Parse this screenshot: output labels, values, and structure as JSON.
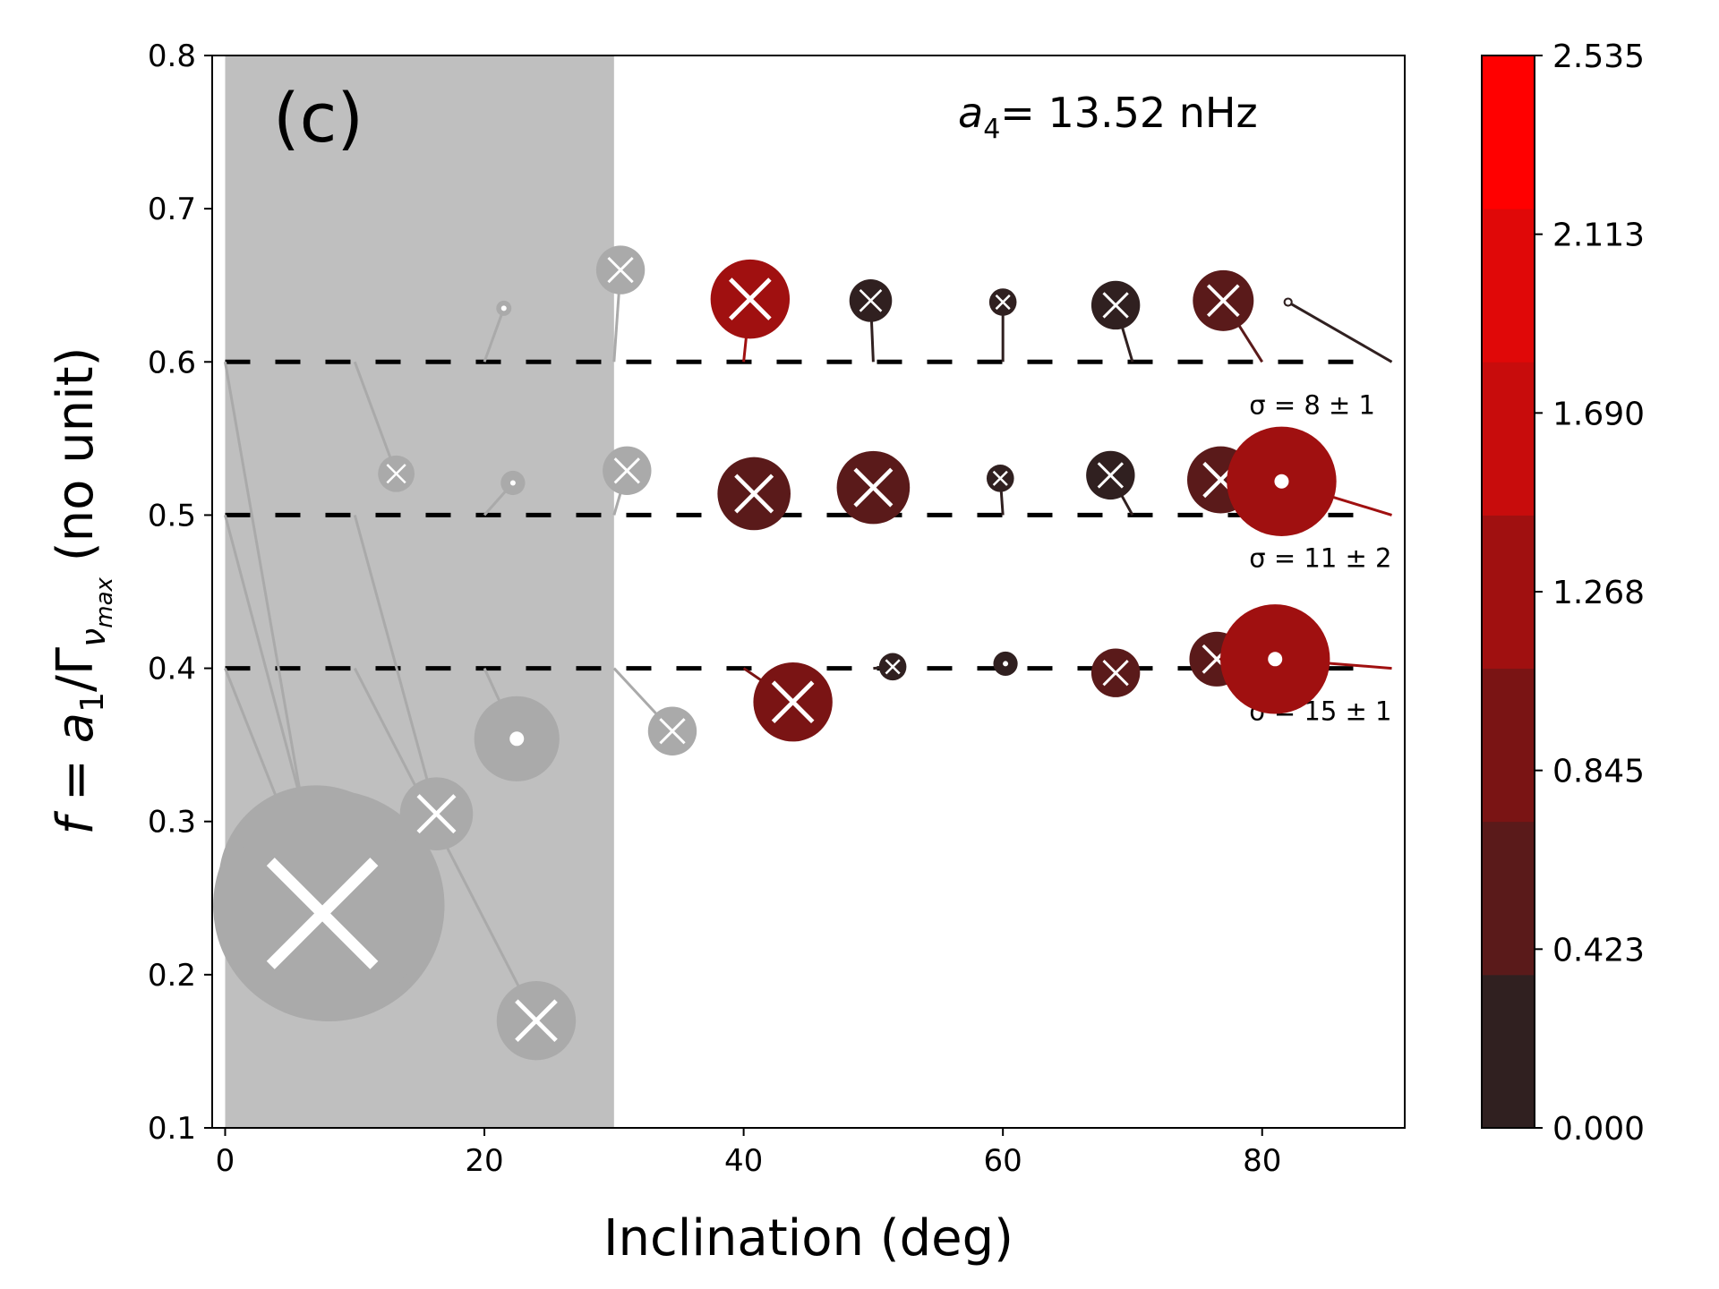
{
  "chart_data": {
    "type": "scatter",
    "panel_label": "(c)",
    "annotation_a4_symbol": "a",
    "annotation_a4_sub": "4",
    "annotation_a4_value": "= 13.52 nHz",
    "xlabel": "Inclination (deg)",
    "ylabel_parts": {
      "f": "f",
      "eq": " = ",
      "a": "a",
      "a_sub": "1",
      "slash": "/Γ",
      "nu": "ν",
      "nu_sub": "max",
      "unit": "  (no unit)"
    },
    "xlim": [
      -1,
      91
    ],
    "ylim": [
      0.1,
      0.8
    ],
    "xticks": [
      0,
      20,
      40,
      60,
      80
    ],
    "yticks": [
      0.1,
      0.2,
      0.3,
      0.4,
      0.5,
      0.6,
      0.7,
      0.8
    ],
    "ytick_labels": [
      "0.1",
      "0.2",
      "0.3",
      "0.4",
      "0.5",
      "0.6",
      "0.7",
      "0.8"
    ],
    "grid": false,
    "shaded_region": {
      "x": [
        0,
        30
      ],
      "color": "#bfbfbf"
    },
    "reference_lines": [
      {
        "y": 0.6,
        "sigma_label": "σ = 8 ± 1"
      },
      {
        "y": 0.5,
        "sigma_label": "σ = 11 ± 2"
      },
      {
        "y": 0.4,
        "sigma_label": "σ = 15 ± 1"
      }
    ],
    "colorbar": {
      "ticks": [
        "0.000",
        "0.423",
        "0.845",
        "1.268",
        "1.690",
        "2.113",
        "2.535"
      ],
      "colors": [
        "#302020",
        "#5a1a1a",
        "#7a1414",
        "#a01010",
        "#c80c0c",
        "#e00808",
        "#ff0000"
      ]
    },
    "points": [
      {
        "true_x": 0,
        "true_y": 0.6,
        "x": 7,
        "y": 0.26,
        "size": 3.2,
        "marker": "x",
        "color": "#aaaaaa"
      },
      {
        "true_x": 0,
        "true_y": 0.5,
        "x": 8,
        "y": 0.245,
        "size": 3.8,
        "marker": "x",
        "color": "#aaaaaa"
      },
      {
        "true_x": 0,
        "true_y": 0.4,
        "x": 7.5,
        "y": 0.24,
        "size": 3.4,
        "marker": "x",
        "color": "#aaaaaa"
      },
      {
        "true_x": 10,
        "true_y": 0.6,
        "x": 13.2,
        "y": 0.527,
        "size": 0.6,
        "marker": "x",
        "color": "#aaaaaa"
      },
      {
        "true_x": 10,
        "true_y": 0.5,
        "x": 16.3,
        "y": 0.305,
        "size": 1.2,
        "marker": "x",
        "color": "#aaaaaa"
      },
      {
        "true_x": 10,
        "true_y": 0.4,
        "x": 24,
        "y": 0.17,
        "size": 1.3,
        "marker": "x",
        "color": "#aaaaaa"
      },
      {
        "true_x": 20,
        "true_y": 0.6,
        "x": 21.5,
        "y": 0.635,
        "size": 0.25,
        "marker": "o",
        "color": "#aaaaaa"
      },
      {
        "true_x": 20,
        "true_y": 0.5,
        "x": 22.2,
        "y": 0.521,
        "size": 0.4,
        "marker": "o",
        "color": "#aaaaaa"
      },
      {
        "true_x": 20,
        "true_y": 0.4,
        "x": 22.5,
        "y": 0.354,
        "size": 1.4,
        "marker": "o",
        "color": "#aaaaaa"
      },
      {
        "true_x": 30,
        "true_y": 0.6,
        "x": 30.5,
        "y": 0.66,
        "size": 0.8,
        "marker": "x",
        "color": "#aaaaaa"
      },
      {
        "true_x": 30,
        "true_y": 0.5,
        "x": 31,
        "y": 0.529,
        "size": 0.8,
        "marker": "x",
        "color": "#aaaaaa"
      },
      {
        "true_x": 30,
        "true_y": 0.4,
        "x": 34.5,
        "y": 0.359,
        "size": 0.8,
        "marker": "x",
        "color": "#aaaaaa"
      },
      {
        "true_x": 40,
        "true_y": 0.6,
        "x": 40.5,
        "y": 0.641,
        "size": 1.3,
        "marker": "x",
        "color": "#a01010"
      },
      {
        "true_x": 40,
        "true_y": 0.5,
        "x": 40.8,
        "y": 0.514,
        "size": 1.2,
        "marker": "x",
        "color": "#5a1a1a"
      },
      {
        "true_x": 40,
        "true_y": 0.4,
        "x": 43.8,
        "y": 0.378,
        "size": 1.3,
        "marker": "x",
        "color": "#7a1414"
      },
      {
        "true_x": 50,
        "true_y": 0.6,
        "x": 49.8,
        "y": 0.64,
        "size": 0.7,
        "marker": "x",
        "color": "#302020"
      },
      {
        "true_x": 50,
        "true_y": 0.5,
        "x": 50,
        "y": 0.518,
        "size": 1.2,
        "marker": "x",
        "color": "#5a1a1a"
      },
      {
        "true_x": 50,
        "true_y": 0.4,
        "x": 51.5,
        "y": 0.401,
        "size": 0.45,
        "marker": "x",
        "color": "#302020"
      },
      {
        "true_x": 60,
        "true_y": 0.6,
        "x": 60,
        "y": 0.639,
        "size": 0.45,
        "marker": "x",
        "color": "#302020"
      },
      {
        "true_x": 60,
        "true_y": 0.5,
        "x": 59.8,
        "y": 0.524,
        "size": 0.45,
        "marker": "x",
        "color": "#302020"
      },
      {
        "true_x": 60,
        "true_y": 0.4,
        "x": 60.2,
        "y": 0.403,
        "size": 0.4,
        "marker": "o",
        "color": "#302020"
      },
      {
        "true_x": 70,
        "true_y": 0.6,
        "x": 68.7,
        "y": 0.637,
        "size": 0.8,
        "marker": "x",
        "color": "#302020"
      },
      {
        "true_x": 70,
        "true_y": 0.5,
        "x": 68.3,
        "y": 0.526,
        "size": 0.8,
        "marker": "x",
        "color": "#302020"
      },
      {
        "true_x": 70,
        "true_y": 0.4,
        "x": 68.7,
        "y": 0.397,
        "size": 0.8,
        "marker": "x",
        "color": "#5a1a1a"
      },
      {
        "true_x": 80,
        "true_y": 0.6,
        "x": 77,
        "y": 0.64,
        "size": 1.0,
        "marker": "x",
        "color": "#5a1a1a"
      },
      {
        "true_x": 80,
        "true_y": 0.5,
        "x": 76.8,
        "y": 0.523,
        "size": 1.1,
        "marker": "x",
        "color": "#5a1a1a"
      },
      {
        "true_x": 80,
        "true_y": 0.4,
        "x": 76.5,
        "y": 0.406,
        "size": 0.9,
        "marker": "x",
        "color": "#5a1a1a"
      },
      {
        "true_x": 90,
        "true_y": 0.6,
        "x": 82,
        "y": 0.639,
        "size": 0.15,
        "marker": "o",
        "color": "#302020"
      },
      {
        "true_x": 90,
        "true_y": 0.5,
        "x": 81.5,
        "y": 0.522,
        "size": 1.8,
        "marker": "o",
        "color": "#a01010"
      },
      {
        "true_x": 90,
        "true_y": 0.4,
        "x": 81,
        "y": 0.406,
        "size": 1.8,
        "marker": "o",
        "color": "#a01010"
      }
    ]
  }
}
